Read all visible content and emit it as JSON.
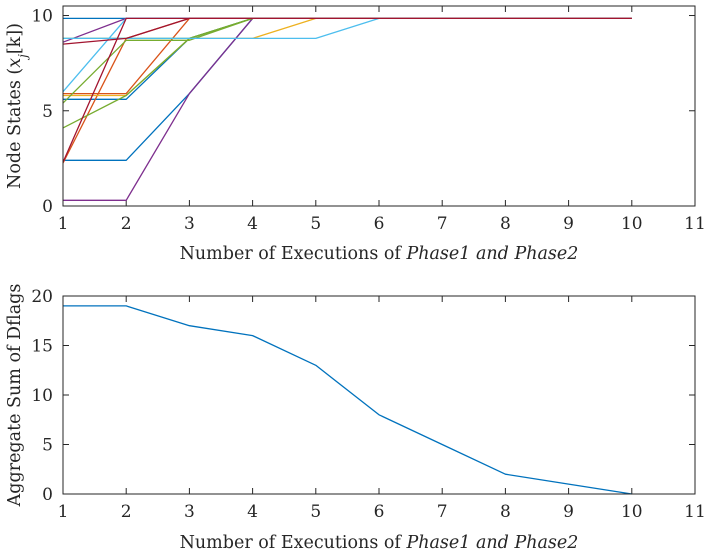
{
  "chart_data": [
    {
      "type": "line",
      "xlabel": {
        "prefix": "Number of Executions of ",
        "it1": "Phase1",
        "mid": " and ",
        "it2": "Phase2"
      },
      "ylabel": {
        "prefix": "Node States (",
        "var": "x",
        "sub": "j",
        "suffix": "[k])"
      },
      "xlim": [
        1,
        11
      ],
      "ylim": [
        0,
        10.5
      ],
      "xticks": [
        "1",
        "2",
        "3",
        "4",
        "5",
        "6",
        "7",
        "8",
        "9",
        "10",
        "11"
      ],
      "yticks": [
        "0",
        "5",
        "10"
      ],
      "xtick_values": [
        1,
        2,
        3,
        4,
        5,
        6,
        7,
        8,
        9,
        10,
        11
      ],
      "ytick_values": [
        0,
        5,
        10
      ],
      "grid": false,
      "series": [
        {
          "color": "#0072BD",
          "x": [
            1,
            2,
            3,
            4,
            5,
            6,
            7,
            8,
            9,
            10
          ],
          "y": [
            2.4,
            2.4,
            5.9,
            9.85,
            9.85,
            9.85,
            9.85,
            9.85,
            9.85,
            9.85
          ]
        },
        {
          "color": "#0072BD",
          "x": [
            1,
            2,
            3,
            4,
            5,
            6,
            7,
            8,
            9,
            10
          ],
          "y": [
            5.6,
            5.6,
            8.8,
            9.85,
            9.85,
            9.85,
            9.85,
            9.85,
            9.85,
            9.85
          ]
        },
        {
          "color": "#0072BD",
          "x": [
            1,
            2,
            3,
            4,
            5,
            6,
            7,
            8,
            9,
            10
          ],
          "y": [
            9.85,
            9.85,
            9.85,
            9.85,
            9.85,
            9.85,
            9.85,
            9.85,
            9.85,
            9.85
          ]
        },
        {
          "color": "#D95319",
          "x": [
            1,
            2,
            3,
            4,
            5,
            6,
            7,
            8,
            9,
            10
          ],
          "y": [
            2.25,
            8.8,
            9.85,
            9.85,
            9.85,
            9.85,
            9.85,
            9.85,
            9.85,
            9.85
          ]
        },
        {
          "color": "#D95319",
          "x": [
            1,
            2,
            3,
            4,
            5,
            6,
            7,
            8,
            9,
            10
          ],
          "y": [
            5.9,
            5.9,
            9.85,
            9.85,
            9.85,
            9.85,
            9.85,
            9.85,
            9.85,
            9.85
          ]
        },
        {
          "color": "#EDB120",
          "x": [
            1,
            2,
            3,
            4,
            5,
            6,
            7,
            8,
            9,
            10
          ],
          "y": [
            5.8,
            5.8,
            8.8,
            8.8,
            9.85,
            9.85,
            9.85,
            9.85,
            9.85,
            9.85
          ]
        },
        {
          "color": "#7E2F8E",
          "x": [
            1,
            2,
            3,
            4,
            5,
            6,
            7,
            8,
            9,
            10
          ],
          "y": [
            0.3,
            0.3,
            5.9,
            9.85,
            9.85,
            9.85,
            9.85,
            9.85,
            9.85,
            9.85
          ]
        },
        {
          "color": "#7E2F8E",
          "x": [
            1,
            2,
            3,
            4,
            5,
            6,
            7,
            8,
            9,
            10
          ],
          "y": [
            8.6,
            9.85,
            9.85,
            9.85,
            9.85,
            9.85,
            9.85,
            9.85,
            9.85,
            9.85
          ]
        },
        {
          "color": "#77AC30",
          "x": [
            1,
            2,
            3,
            4,
            5,
            6,
            7,
            8,
            9,
            10
          ],
          "y": [
            4.1,
            5.8,
            8.8,
            9.85,
            9.85,
            9.85,
            9.85,
            9.85,
            9.85,
            9.85
          ]
        },
        {
          "color": "#77AC30",
          "x": [
            1,
            2,
            3,
            4,
            5,
            6,
            7,
            8,
            9,
            10
          ],
          "y": [
            8.8,
            8.8,
            8.8,
            9.85,
            9.85,
            9.85,
            9.85,
            9.85,
            9.85,
            9.85
          ]
        },
        {
          "color": "#77AC30",
          "x": [
            1,
            2,
            3,
            4,
            5,
            6,
            7,
            8,
            9,
            10
          ],
          "y": [
            5.4,
            8.7,
            8.7,
            9.85,
            9.85,
            9.85,
            9.85,
            9.85,
            9.85,
            9.85
          ]
        },
        {
          "color": "#4DBEEE",
          "x": [
            1,
            2,
            3,
            4,
            5,
            6,
            7,
            8,
            9,
            10
          ],
          "y": [
            6.0,
            9.85,
            9.85,
            9.85,
            9.85,
            9.85,
            9.85,
            9.85,
            9.85,
            9.85
          ]
        },
        {
          "color": "#4DBEEE",
          "x": [
            1,
            2,
            3,
            4,
            5,
            6,
            7,
            8,
            9,
            10
          ],
          "y": [
            8.8,
            8.8,
            8.8,
            8.8,
            8.8,
            9.85,
            9.85,
            9.85,
            9.85,
            9.85
          ]
        },
        {
          "color": "#A2142F",
          "x": [
            1,
            2,
            3,
            4,
            5,
            6,
            7,
            8,
            9,
            10
          ],
          "y": [
            2.3,
            9.85,
            9.85,
            9.85,
            9.85,
            9.85,
            9.85,
            9.85,
            9.85,
            9.85
          ]
        },
        {
          "color": "#A2142F",
          "x": [
            1,
            2,
            3,
            4,
            5,
            6,
            7,
            8,
            9,
            10
          ],
          "y": [
            8.5,
            8.8,
            9.85,
            9.85,
            9.85,
            9.85,
            9.85,
            9.85,
            9.85,
            9.85
          ]
        }
      ]
    },
    {
      "type": "line",
      "xlabel": {
        "prefix": "Number of Executions of ",
        "it1": "Phase1",
        "mid": " and ",
        "it2": "Phase2"
      },
      "ylabel": {
        "prefix": "Aggregate Sum of Dflags"
      },
      "xlim": [
        1,
        11
      ],
      "ylim": [
        0,
        20
      ],
      "xticks": [
        "1",
        "2",
        "3",
        "4",
        "5",
        "6",
        "7",
        "8",
        "9",
        "10",
        "11"
      ],
      "yticks": [
        "0",
        "5",
        "10",
        "15",
        "20"
      ],
      "xtick_values": [
        1,
        2,
        3,
        4,
        5,
        6,
        7,
        8,
        9,
        10,
        11
      ],
      "ytick_values": [
        0,
        5,
        10,
        15,
        20
      ],
      "grid": false,
      "series": [
        {
          "color": "#0072BD",
          "x": [
            1,
            2,
            3,
            4,
            5,
            6,
            7,
            8,
            9,
            10
          ],
          "y": [
            19,
            19,
            17,
            16,
            13,
            8,
            5,
            2,
            1,
            0
          ]
        }
      ]
    }
  ]
}
